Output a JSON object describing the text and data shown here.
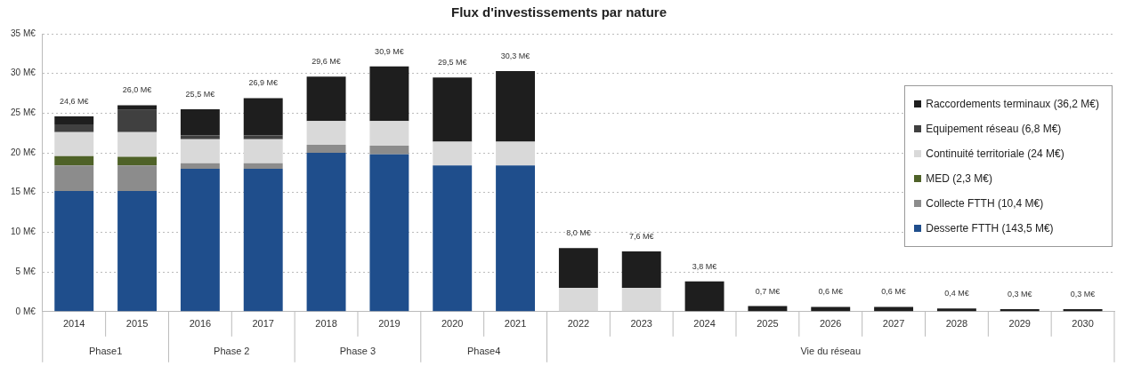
{
  "chart_data": {
    "type": "bar",
    "title": "Flux d'investissements par nature",
    "categories": [
      "2014",
      "2015",
      "2016",
      "2017",
      "2018",
      "2019",
      "2020",
      "2021",
      "2022",
      "2023",
      "2024",
      "2025",
      "2026",
      "2027",
      "2028",
      "2029",
      "2030"
    ],
    "stacked": true,
    "series": [
      {
        "name": "Desserte FTTH (143,5 M€)",
        "color": "#1f4e8c",
        "values": [
          15.2,
          15.2,
          18.0,
          18.0,
          20.0,
          19.8,
          18.4,
          18.4,
          null,
          null,
          null,
          null,
          null,
          null,
          null,
          null,
          null
        ]
      },
      {
        "name": "Collecte FTTH (10,4 M€)",
        "color": "#8c8c8c",
        "values": [
          3.2,
          3.2,
          0.7,
          0.7,
          1.0,
          1.1,
          null,
          null,
          null,
          null,
          null,
          null,
          null,
          null,
          null,
          null,
          null
        ]
      },
      {
        "name": "MED (2,3 M€)",
        "color": "#4f6228",
        "values": [
          1.2,
          1.1,
          null,
          null,
          null,
          null,
          null,
          null,
          null,
          null,
          null,
          null,
          null,
          null,
          null,
          null,
          null
        ]
      },
      {
        "name": "Continuité territoriale (24 M€)",
        "color": "#d9d9d9",
        "values": [
          3.0,
          3.1,
          3.0,
          3.0,
          3.0,
          3.1,
          3.0,
          3.0,
          3.0,
          3.0,
          null,
          null,
          null,
          null,
          null,
          null,
          null
        ]
      },
      {
        "name": "Equipement réseau (6,8 M€)",
        "color": "#404040",
        "values": [
          1.0,
          2.8,
          0.5,
          0.5,
          null,
          null,
          null,
          null,
          null,
          null,
          null,
          null,
          null,
          null,
          null,
          null,
          null
        ]
      },
      {
        "name": "Raccordements terminaux (36,2 M€)",
        "color": "#1e1e1e",
        "values": [
          1.0,
          0.6,
          3.3,
          4.7,
          5.6,
          6.9,
          8.1,
          8.9,
          5.0,
          4.6,
          3.8,
          0.7,
          0.6,
          0.6,
          0.4,
          0.3,
          0.3
        ]
      }
    ],
    "totals": [
      "24,6 M€",
      "26,0 M€",
      "25,5 M€",
      "26,9 M€",
      "29,6 M€",
      "30,9 M€",
      "29,5 M€",
      "30,3 M€",
      "8,0 M€",
      "7,6 M€",
      "3,8 M€",
      "0,7 M€",
      "0,6 M€",
      "0,6 M€",
      "0,4 M€",
      "0,3 M€",
      "0,3 M€"
    ],
    "ylim": [
      0,
      35
    ],
    "yticks": [
      {
        "value": 0,
        "label": "0 M€"
      },
      {
        "value": 5,
        "label": "5 M€"
      },
      {
        "value": 10,
        "label": "10 M€"
      },
      {
        "value": 15,
        "label": "15 M€"
      },
      {
        "value": 20,
        "label": "20 M€"
      },
      {
        "value": 25,
        "label": "25 M€"
      },
      {
        "value": 30,
        "label": "30 M€"
      },
      {
        "value": 35,
        "label": "35 M€"
      }
    ],
    "grid": "y",
    "legend": "right",
    "annotations": [
      "Phase1",
      "Phase 2",
      "Phase 3",
      "Phase4",
      "Vie du réseau"
    ]
  }
}
